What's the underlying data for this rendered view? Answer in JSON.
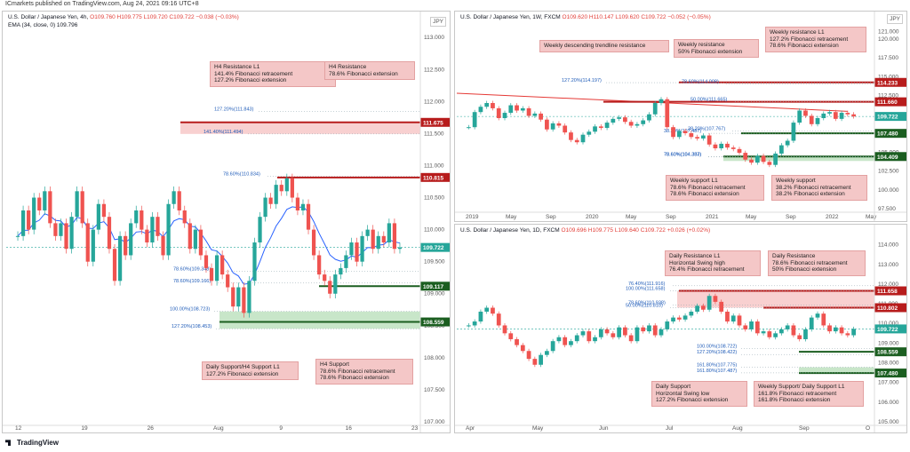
{
  "header": {
    "text": "ICmarkets published on TradingView.com, Aug 24, 2021 09:16 UTC+8"
  },
  "footer": {
    "brand": "TradingView"
  },
  "colors": {
    "up": "#26a69a",
    "down": "#ef5350",
    "ema": "#2962ff",
    "resistance": "#b71c1c",
    "support": "#1b5e20",
    "note": "#f4c7c7",
    "zone_res": "#f8d0d0",
    "zone_sup": "#c8e6c9"
  },
  "panels": [
    {
      "id": "h4",
      "title": "U.S. Dollar / Japanese Yen, 4h,",
      "ohlc": "O109.760 H109.775 L109.720 C109.722 −0.038 (−0.03%)",
      "ema": "EMA (34, close, 0)  109.796",
      "currency": "JPY",
      "y_ticks": [
        "113.000",
        "112.500",
        "112.000",
        "111.500",
        "111.000",
        "110.500",
        "110.000",
        "109.500",
        "109.000",
        "108.500",
        "108.000",
        "107.500",
        "107.000"
      ],
      "x_ticks": [
        "12",
        "19",
        "26",
        "Aug",
        "9",
        "16",
        "23"
      ],
      "price_tags": [
        {
          "label": "111.675",
          "type": "resistance"
        },
        {
          "label": "110.815",
          "type": "resistance"
        },
        {
          "label": "109.722",
          "type": "last"
        },
        {
          "label": "109.117",
          "type": "support"
        },
        {
          "label": "108.559",
          "type": "support"
        }
      ],
      "fib_labels": [
        "127.20%(111.843)",
        "141.40%(111.494)",
        "78.60%(110.834)",
        "78.60%(109.348)",
        "78.60%(109.166)",
        "100.00%(108.723)",
        "127.20%(108.453)"
      ],
      "notes": [
        {
          "text": "H4 Resistance L1\n141.4% Fibonacci retracement\n127.2% Fibonacci extension"
        },
        {
          "text": "H4 Resistance\n78.6% Fibonacci extension"
        },
        {
          "text": "Daily Support/H4 Support L1\n127.2% Fibonacci extension"
        },
        {
          "text": "H4 Support\n78.6% Fibonacci retracement\n78.6% Fibonacci extension"
        }
      ]
    },
    {
      "id": "weekly",
      "title": "U.S. Dollar / Japanese Yen, 1W, FXCM",
      "ohlc": "O109.620 H110.147 L109.620 C109.722 −0.052 (−0.05%)",
      "currency": "JPY",
      "y_ticks": [
        "121.000",
        "120.000",
        "117.500",
        "115.000",
        "112.500",
        "110.000",
        "107.500",
        "105.000",
        "102.500",
        "100.000",
        "97.500"
      ],
      "x_ticks": [
        "2019",
        "May",
        "Sep",
        "2020",
        "May",
        "Sep",
        "2021",
        "May",
        "Sep",
        "2022",
        "May"
      ],
      "price_tags": [
        {
          "label": "114.233",
          "type": "resistance"
        },
        {
          "label": "111.660",
          "type": "resistance"
        },
        {
          "label": "109.722",
          "type": "last"
        },
        {
          "label": "107.480",
          "type": "support"
        },
        {
          "label": "104.409",
          "type": "support"
        }
      ],
      "fib_labels": [
        "127.20%(114.197)",
        "78.60%(114.008)",
        "50.00%(111.665)",
        "38.20%(107.767)",
        "38.20%(107.487)",
        "78.60%(104.383)",
        "78.60%(104.387)"
      ],
      "notes": [
        {
          "text": "Weekly descending trendline resistance"
        },
        {
          "text": "Weekly resistance\n50% Fibonacci extension"
        },
        {
          "text": "Weekly resistance L1\n127.2% Fibonacci retracement\n78.6% Fibonacci extension"
        },
        {
          "text": "Weekly support L1\n78.6% Fibonacci retracement\n78.6% Fibonacci extension"
        },
        {
          "text": "Weekly support\n38.2% Fibonacci retracement\n38.2% Fibonacci extension"
        }
      ]
    },
    {
      "id": "daily",
      "title": "U.S. Dollar / Japanese Yen, 1D, FXCM",
      "ohlc": "O109.696 H109.775 L109.640 C109.722 +0.026 (+0.02%)",
      "currency": "JPY",
      "y_ticks": [
        "114.000",
        "113.000",
        "112.000",
        "111.000",
        "110.000",
        "109.000",
        "108.000",
        "107.000",
        "106.000",
        "105.000"
      ],
      "x_ticks": [
        "Apr",
        "May",
        "Jun",
        "Jul",
        "Aug",
        "Sep",
        "O"
      ],
      "price_tags": [
        {
          "label": "111.658",
          "type": "resistance"
        },
        {
          "label": "110.802",
          "type": "resistance"
        },
        {
          "label": "109.722",
          "type": "last"
        },
        {
          "label": "108.559",
          "type": "support"
        },
        {
          "label": "107.480",
          "type": "support"
        }
      ],
      "fib_labels": [
        "76.40%(111.916)",
        "100.00%(111.658)",
        "78.60%(110.938)",
        "50.00%(110.810)",
        "100.00%(108.722)",
        "127.20%(108.422)",
        "161.80%(107.775)",
        "161.80%(107.487)"
      ],
      "notes": [
        {
          "text": "Daily Resistance L1\nHorizontal Swing high\n76.4% Fibonacci retracement"
        },
        {
          "text": "Daily Resistance\n78.6% Fibonacci retracement\n50% Fibonacci extension"
        },
        {
          "text": "Daily Support\nHorizontal Swing low\n127.2% Fibonacci extension"
        },
        {
          "text": "Weekly Support/ Daily Support L1\n161.8% Fibonacci retracement\n161.8% Fibonacci extension"
        }
      ]
    }
  ],
  "chart_data": [
    {
      "type": "candlestick",
      "title": "U.S. Dollar / Japanese Yen, 4h",
      "ylim": [
        107.0,
        113.1
      ],
      "last": 109.722,
      "levels": [
        111.675,
        110.815,
        109.117,
        108.559
      ],
      "resistance_zone": [
        111.494,
        111.675
      ],
      "support_zone": [
        108.453,
        108.723
      ],
      "path": [
        109.9,
        110.3,
        110.0,
        110.5,
        110.3,
        110.6,
        110.1,
        109.9,
        110.1,
        109.7,
        110.2,
        110.6,
        110.1,
        109.5,
        110.0,
        110.4,
        110.2,
        109.7,
        109.2,
        109.9,
        109.6,
        110.1,
        110.3,
        110.0,
        109.8,
        110.2,
        109.9,
        109.6,
        110.4,
        110.6,
        110.3,
        110.1,
        109.7,
        110.0,
        109.6,
        109.4,
        109.2,
        109.6,
        109.3,
        109.1,
        108.8,
        109.1,
        108.7,
        109.2,
        109.8,
        110.2,
        110.5,
        110.4,
        110.7,
        110.6,
        110.8,
        110.5,
        110.3,
        110.4,
        110.0,
        109.6,
        109.3,
        109.2,
        109.0,
        109.3,
        109.4,
        109.6,
        109.8,
        109.5,
        109.9,
        110.0,
        109.7,
        109.9,
        109.8,
        110.1,
        109.7,
        109.722
      ]
    },
    {
      "type": "candlestick",
      "title": "U.S. Dollar / Japanese Yen, 1W, FXCM",
      "ylim": [
        97.5,
        121.5
      ],
      "last": 109.722,
      "levels": [
        114.233,
        111.66,
        107.48,
        104.409
      ],
      "trendline": {
        "from": [
          2019.0,
          112.8
        ],
        "to": [
          2021.9,
          110.4
        ]
      },
      "path": [
        108.3,
        110.3,
        111.0,
        111.5,
        110.8,
        109.5,
        110.2,
        111.2,
        110.5,
        110.8,
        109.8,
        110.1,
        109.3,
        108.0,
        108.8,
        108.5,
        107.6,
        106.6,
        106.3,
        107.3,
        107.7,
        108.4,
        108.2,
        108.9,
        109.4,
        109.6,
        109.0,
        108.5,
        108.7,
        109.2,
        110.0,
        111.5,
        112.0,
        108.3,
        107.0,
        107.8,
        107.5,
        107.0,
        106.8,
        107.2,
        106.0,
        105.5,
        106.1,
        105.6,
        105.4,
        104.9,
        104.0,
        103.6,
        104.5,
        103.7,
        103.3,
        104.8,
        105.9,
        106.5,
        108.9,
        110.5,
        109.8,
        108.7,
        109.5,
        110.1,
        110.3,
        109.4,
        110.2,
        110.0,
        109.722
      ]
    },
    {
      "type": "candlestick",
      "title": "U.S. Dollar / Japanese Yen, 1D, FXCM",
      "ylim": [
        105.0,
        114.3
      ],
      "last": 109.722,
      "levels": [
        111.658,
        110.802,
        108.559,
        107.48
      ],
      "resistance_zone": [
        110.802,
        111.658
      ],
      "support_zone": [
        107.48,
        107.775
      ],
      "path": [
        109.9,
        110.1,
        110.6,
        110.8,
        110.5,
        109.9,
        109.5,
        109.2,
        108.9,
        108.6,
        108.2,
        107.9,
        108.4,
        108.6,
        109.1,
        109.3,
        108.9,
        109.1,
        109.4,
        109.6,
        109.1,
        109.3,
        109.7,
        109.5,
        109.3,
        109.8,
        109.4,
        109.1,
        109.8,
        109.6,
        109.9,
        109.4,
        109.7,
        110.1,
        110.3,
        110.2,
        110.4,
        110.6,
        110.9,
        110.7,
        111.4,
        111.1,
        110.6,
        110.1,
        110.4,
        109.9,
        109.7,
        110.1,
        109.5,
        109.6,
        109.3,
        109.5,
        109.7,
        109.9,
        109.4,
        109.2,
        109.7,
        110.3,
        110.5,
        109.9,
        109.6,
        109.8,
        109.5,
        109.4,
        109.722
      ]
    }
  ]
}
